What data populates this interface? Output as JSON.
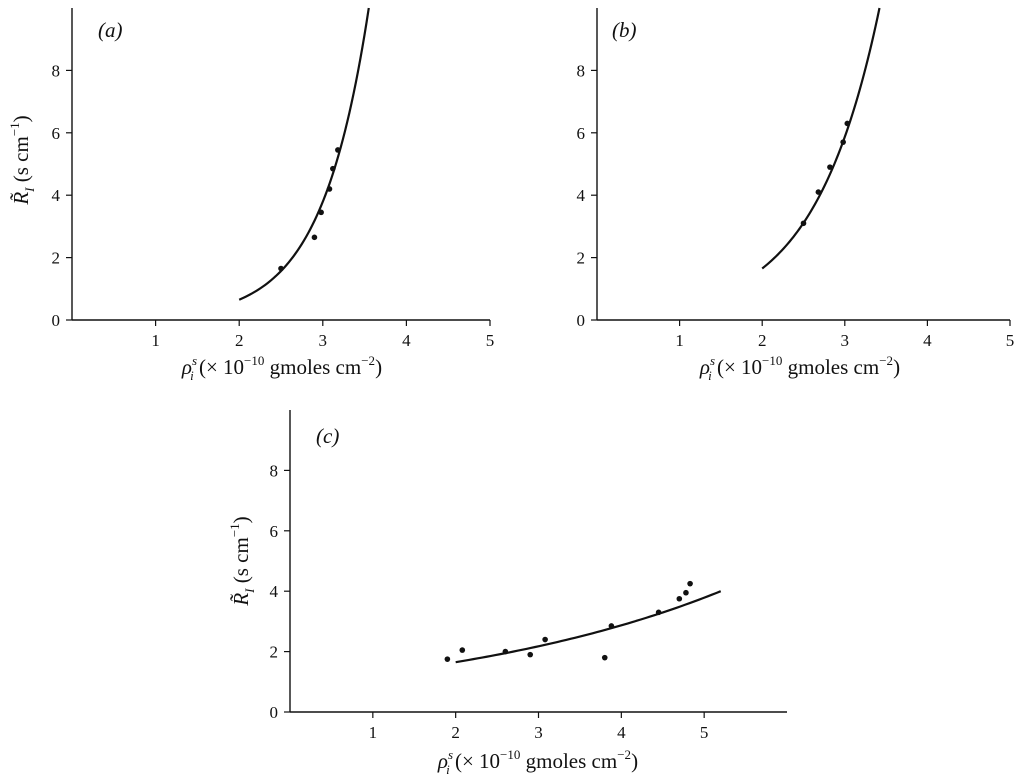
{
  "chart_data": [
    {
      "type": "scatter",
      "panel_label": "(a)",
      "xlabel": {
        "main": "ρ",
        "sup": "s",
        "sub": "i",
        "rest": " (× 10",
        "exp": "−10",
        "unit": " gmoles cm",
        "unit_exp": "−2",
        "close": ")"
      },
      "ylabel": {
        "main": "R̃",
        "sub": "I",
        "rest": " (s cm",
        "exp": "−1",
        "close": ")"
      },
      "xlim": [
        0,
        5
      ],
      "ylim": [
        0,
        10
      ],
      "xticks": [
        1,
        2,
        3,
        4,
        5
      ],
      "yticks": [
        0,
        2,
        4,
        6,
        8
      ],
      "grid": false,
      "series": [
        {
          "kind": "points",
          "x": [
            2.5,
            2.9,
            2.98,
            3.08,
            3.12,
            3.18
          ],
          "y": [
            1.65,
            2.65,
            3.45,
            4.2,
            4.85,
            5.45
          ]
        },
        {
          "kind": "fit",
          "curve": "exponential",
          "x_range": [
            2.0,
            3.55
          ],
          "y_start": 0.65,
          "y_end": 10.0
        }
      ]
    },
    {
      "type": "scatter",
      "panel_label": "(b)",
      "xlabel": {
        "main": "ρ",
        "sup": "s",
        "sub": "i",
        "rest": " (× 10",
        "exp": "−10",
        "unit": " gmoles cm",
        "unit_exp": "−2",
        "close": ")"
      },
      "ylabel": null,
      "xlim": [
        0,
        5
      ],
      "ylim": [
        0,
        10
      ],
      "xticks": [
        1,
        2,
        3,
        4,
        5
      ],
      "yticks": [
        0,
        2,
        4,
        6,
        8
      ],
      "grid": false,
      "series": [
        {
          "kind": "points",
          "x": [
            2.5,
            2.68,
            2.82,
            2.98,
            3.03
          ],
          "y": [
            3.1,
            4.1,
            4.9,
            5.7,
            6.3
          ]
        },
        {
          "kind": "fit",
          "curve": "exponential",
          "x_range": [
            2.0,
            3.42
          ],
          "y_start": 1.65,
          "y_end": 10.0
        }
      ]
    },
    {
      "type": "scatter",
      "panel_label": "(c)",
      "xlabel": {
        "main": "ρ",
        "sup": "s",
        "sub": "i",
        "rest": " (× 10",
        "exp": "−10",
        "unit": " gmoles cm",
        "unit_exp": "−2",
        "close": ")"
      },
      "ylabel": {
        "main": "R̃",
        "sub": "I",
        "rest": " (s cm",
        "exp": "−1",
        "close": ")"
      },
      "xlim": [
        0,
        6
      ],
      "ylim": [
        0,
        10
      ],
      "xticks": [
        1,
        2,
        3,
        4,
        5
      ],
      "yticks": [
        0,
        2,
        4,
        6,
        8
      ],
      "grid": false,
      "series": [
        {
          "kind": "points",
          "x": [
            1.9,
            2.08,
            2.6,
            2.9,
            3.08,
            3.8,
            3.88,
            4.45,
            4.7,
            4.78,
            4.83
          ],
          "y": [
            1.75,
            2.05,
            2.0,
            1.9,
            2.4,
            1.8,
            2.85,
            3.3,
            3.75,
            3.95,
            4.25
          ]
        },
        {
          "kind": "fit",
          "curve": "exponential",
          "x_range": [
            2.0,
            5.2
          ],
          "y_start": 1.65,
          "y_end": 4.0
        }
      ]
    }
  ]
}
